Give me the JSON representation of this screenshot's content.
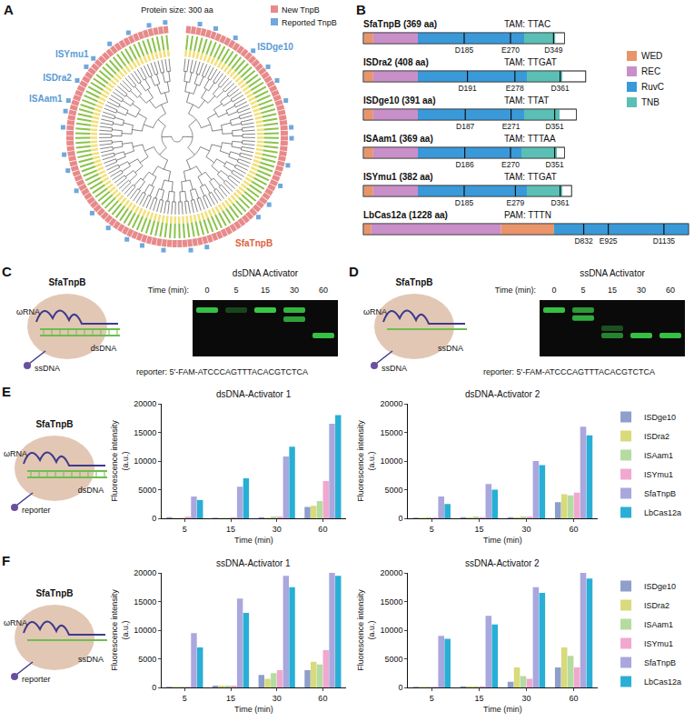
{
  "chart_data": [
    {
      "type": "bar",
      "title": "dsDNA-Activator 1",
      "xlabel": "Time (min)",
      "ylabel": "Fluorescence intensity (a.u.)",
      "categories": [
        "5",
        "15",
        "30",
        "60"
      ],
      "ylim": [
        0,
        20000
      ],
      "yticks": [
        0,
        5000,
        10000,
        15000,
        20000
      ],
      "grid": false,
      "legend": "right",
      "series": [
        {
          "name": "ISDge10",
          "color": "#8E9FCB",
          "values": [
            200,
            100,
            200,
            2000
          ]
        },
        {
          "name": "ISDra2",
          "color": "#D8DA7B",
          "values": [
            100,
            100,
            100,
            2200
          ]
        },
        {
          "name": "ISAam1",
          "color": "#B4DCA0",
          "values": [
            100,
            100,
            300,
            3000
          ]
        },
        {
          "name": "ISYmu1",
          "color": "#F0A8CF",
          "values": [
            300,
            200,
            300,
            6500
          ]
        },
        {
          "name": "SfaTnpB",
          "color": "#A9A7DD",
          "values": [
            3800,
            5500,
            10800,
            16500
          ]
        },
        {
          "name": "LbCas12a",
          "color": "#29AFD6",
          "values": [
            3200,
            7000,
            12500,
            18000
          ]
        }
      ]
    },
    {
      "type": "bar",
      "title": "dsDNA-Activator 2",
      "xlabel": "Time (min)",
      "ylabel": "Fluorescence intensity (a.u.)",
      "categories": [
        "5",
        "15",
        "30",
        "60"
      ],
      "ylim": [
        0,
        20000
      ],
      "yticks": [
        0,
        5000,
        10000,
        15000,
        20000
      ],
      "grid": false,
      "legend": "right",
      "series": [
        {
          "name": "ISDge10",
          "color": "#8E9FCB",
          "values": [
            100,
            200,
            200,
            2800
          ]
        },
        {
          "name": "ISDra2",
          "color": "#D8DA7B",
          "values": [
            100,
            200,
            200,
            4200
          ]
        },
        {
          "name": "ISAam1",
          "color": "#B4DCA0",
          "values": [
            200,
            300,
            300,
            4000
          ]
        },
        {
          "name": "ISYmu1",
          "color": "#F0A8CF",
          "values": [
            100,
            200,
            300,
            4500
          ]
        },
        {
          "name": "SfaTnpB",
          "color": "#A9A7DD",
          "values": [
            3800,
            6000,
            10000,
            16000
          ]
        },
        {
          "name": "LbCas12a",
          "color": "#29AFD6",
          "values": [
            2500,
            5000,
            9300,
            14500
          ]
        }
      ]
    },
    {
      "type": "bar",
      "title": "ssDNA-Activator 1",
      "xlabel": "Time (min)",
      "ylabel": "Fluorescence intensity (a.u.)",
      "categories": [
        "5",
        "15",
        "30",
        "60"
      ],
      "ylim": [
        0,
        20000
      ],
      "yticks": [
        0,
        5000,
        10000,
        15000,
        20000
      ],
      "grid": false,
      "legend": "right",
      "series": [
        {
          "name": "ISDge10",
          "color": "#8E9FCB",
          "values": [
            100,
            300,
            2200,
            3000
          ]
        },
        {
          "name": "ISDra2",
          "color": "#D8DA7B",
          "values": [
            100,
            300,
            1500,
            4500
          ]
        },
        {
          "name": "ISAam1",
          "color": "#B4DCA0",
          "values": [
            100,
            300,
            2500,
            4000
          ]
        },
        {
          "name": "ISYmu1",
          "color": "#F0A8CF",
          "values": [
            100,
            300,
            3000,
            6500
          ]
        },
        {
          "name": "SfaTnpB",
          "color": "#A9A7DD",
          "values": [
            9500,
            15500,
            19500,
            20000
          ]
        },
        {
          "name": "LbCas12a",
          "color": "#29AFD6",
          "values": [
            7000,
            13000,
            17500,
            19500
          ]
        }
      ]
    },
    {
      "type": "bar",
      "title": "ssDNA-Activator 2",
      "xlabel": "Time (min)",
      "ylabel": "Fluorescence intensity (a.u.)",
      "categories": [
        "5",
        "15",
        "30",
        "60"
      ],
      "ylim": [
        0,
        20000
      ],
      "yticks": [
        0,
        5000,
        10000,
        15000,
        20000
      ],
      "grid": false,
      "legend": "right",
      "series": [
        {
          "name": "ISDge10",
          "color": "#8E9FCB",
          "values": [
            100,
            200,
            1000,
            3500
          ]
        },
        {
          "name": "ISDra2",
          "color": "#D8DA7B",
          "values": [
            100,
            200,
            3500,
            7000
          ]
        },
        {
          "name": "ISAam1",
          "color": "#B4DCA0",
          "values": [
            100,
            200,
            2000,
            5500
          ]
        },
        {
          "name": "ISYmu1",
          "color": "#F0A8CF",
          "values": [
            100,
            200,
            1500,
            3500
          ]
        },
        {
          "name": "SfaTnpB",
          "color": "#A9A7DD",
          "values": [
            9000,
            12500,
            17500,
            20000
          ]
        },
        {
          "name": "LbCas12a",
          "color": "#29AFD6",
          "values": [
            8500,
            11000,
            16500,
            19000
          ]
        }
      ]
    }
  ],
  "panels": {
    "A": {
      "letter": "A",
      "top_label": "Protein size: 300 aa",
      "legend": [
        {
          "name": "New TnpB",
          "color": "#E88A8A"
        },
        {
          "name": "Reported TnpB",
          "color": "#6FA8DC"
        }
      ],
      "leaf_count": 128,
      "reported_leaves": [
        2,
        5,
        9,
        13,
        17,
        20,
        24,
        29,
        31,
        36,
        40,
        44,
        47,
        58,
        61,
        66,
        70,
        73,
        77,
        81,
        86,
        90,
        93,
        98,
        101,
        103,
        107,
        110,
        112,
        116,
        120,
        124,
        127
      ],
      "highlights": [
        {
          "name": "ISYmu1",
          "leaf": 112,
          "color": "#5B9BD5"
        },
        {
          "name": "ISDra2",
          "leaf": 107,
          "color": "#5B9BD5"
        },
        {
          "name": "ISAam1",
          "leaf": 103,
          "color": "#5B9BD5"
        },
        {
          "name": "ISDge10",
          "leaf": 13,
          "color": "#5B9BD5"
        },
        {
          "name": "SfaTnpB",
          "leaf": 53,
          "color": "#E0603E"
        }
      ]
    },
    "B": {
      "letter": "B",
      "legend": [
        {
          "name": "WED",
          "color": "#E8956B"
        },
        {
          "name": "REC",
          "color": "#C98FC9"
        },
        {
          "name": "RuvC",
          "color": "#3A9AD9"
        },
        {
          "name": "TNB",
          "color": "#5BBFB5"
        }
      ],
      "proteins": [
        {
          "label": "SfaTnpB (369 aa)",
          "length": 369,
          "motif": "TAM: TTAC",
          "domains": [
            {
              "name": "WED",
              "start": 1,
              "end": 18
            },
            {
              "name": "REC",
              "start": 18,
              "end": 100
            },
            {
              "name": "RuvC",
              "start": 100,
              "end": 295
            },
            {
              "name": "TNB",
              "start": 295,
              "end": 352
            }
          ],
          "sites": [
            {
              "label": "D185",
              "pos": 185
            },
            {
              "label": "E270",
              "pos": 270
            },
            {
              "label": "D349",
              "pos": 349
            }
          ]
        },
        {
          "label": "ISDra2 (408 aa)",
          "length": 408,
          "motif": "TAM: TTGAT",
          "domains": [
            {
              "name": "WED",
              "start": 1,
              "end": 18
            },
            {
              "name": "REC",
              "start": 18,
              "end": 100
            },
            {
              "name": "RuvC",
              "start": 100,
              "end": 300
            },
            {
              "name": "TNB",
              "start": 300,
              "end": 365
            }
          ],
          "sites": [
            {
              "label": "D191",
              "pos": 191
            },
            {
              "label": "E278",
              "pos": 278
            },
            {
              "label": "D361",
              "pos": 361
            }
          ]
        },
        {
          "label": "ISDge10 (391 aa)",
          "length": 391,
          "motif": "TAM: TTAT",
          "domains": [
            {
              "name": "WED",
              "start": 1,
              "end": 18
            },
            {
              "name": "REC",
              "start": 18,
              "end": 100
            },
            {
              "name": "RuvC",
              "start": 100,
              "end": 295
            },
            {
              "name": "TNB",
              "start": 295,
              "end": 360
            }
          ],
          "sites": [
            {
              "label": "D187",
              "pos": 187
            },
            {
              "label": "E271",
              "pos": 271
            },
            {
              "label": "D351",
              "pos": 351
            }
          ]
        },
        {
          "label": "ISAam1 (369 aa)",
          "length": 369,
          "motif": "TAM: TTTAA",
          "domains": [
            {
              "name": "WED",
              "start": 1,
              "end": 18
            },
            {
              "name": "REC",
              "start": 18,
              "end": 100
            },
            {
              "name": "RuvC",
              "start": 100,
              "end": 290
            },
            {
              "name": "TNB",
              "start": 290,
              "end": 355
            }
          ],
          "sites": [
            {
              "label": "D186",
              "pos": 186
            },
            {
              "label": "E270",
              "pos": 270
            },
            {
              "label": "D351",
              "pos": 351
            }
          ]
        },
        {
          "label": "ISYmu1 (382 aa)",
          "length": 382,
          "motif": "TAM: TTGAT",
          "domains": [
            {
              "name": "WED",
              "start": 1,
              "end": 18
            },
            {
              "name": "REC",
              "start": 18,
              "end": 100
            },
            {
              "name": "RuvC",
              "start": 100,
              "end": 300
            },
            {
              "name": "TNB",
              "start": 300,
              "end": 365
            }
          ],
          "sites": [
            {
              "label": "D185",
              "pos": 185
            },
            {
              "label": "E279",
              "pos": 279
            },
            {
              "label": "D361",
              "pos": 361
            }
          ]
        },
        {
          "label": "LbCas12a (1228 aa)",
          "length": 1228,
          "motif": "PAM: TTTN",
          "domains": [
            {
              "name": "WED",
              "start": 1,
              "end": 30
            },
            {
              "name": "REC",
              "start": 30,
              "end": 520
            },
            {
              "name": "WED",
              "start": 520,
              "end": 720
            },
            {
              "name": "RuvC",
              "start": 720,
              "end": 1228
            }
          ],
          "sites": [
            {
              "label": "D832",
              "pos": 832
            },
            {
              "label": "E925",
              "pos": 925
            },
            {
              "label": "D1135",
              "pos": 1135
            }
          ]
        }
      ]
    },
    "C": {
      "letter": "C",
      "protein": "SfaTnpB",
      "rna": "ωRNA",
      "target": "dsDNA",
      "reporter_label": "ssDNA",
      "activator": "dsDNA Activator",
      "time_label": "Time (min):",
      "times": [
        0,
        5,
        15,
        30,
        60
      ],
      "lanes": [
        [
          {
            "migration": 0,
            "intensity": 0.9
          }
        ],
        [
          {
            "migration": 0,
            "intensity": 0.3
          }
        ],
        [
          {
            "migration": 0,
            "intensity": 0.95
          }
        ],
        [
          {
            "migration": 0,
            "intensity": 0.85
          },
          {
            "migration": 0.25,
            "intensity": 0.75
          }
        ],
        [
          {
            "migration": 0.7,
            "intensity": 0.9
          }
        ]
      ],
      "reporter": "reporter: 5'-FAM-ATCCCAGTTTACACGTCTCA"
    },
    "D": {
      "letter": "D",
      "protein": "SfaTnpB",
      "rna": "ωRNA",
      "target": "ssDNA",
      "reporter_label": "ssDNA",
      "activator": "ssDNA Activator",
      "time_label": "Time (min):",
      "times": [
        0,
        5,
        15,
        30,
        60
      ],
      "lanes": [
        [
          {
            "migration": 0,
            "intensity": 0.9
          }
        ],
        [
          {
            "migration": 0,
            "intensity": 0.7
          },
          {
            "migration": 0.22,
            "intensity": 0.8
          }
        ],
        [
          {
            "migration": 0.5,
            "intensity": 0.35
          },
          {
            "migration": 0.7,
            "intensity": 0.6
          }
        ],
        [
          {
            "migration": 0.7,
            "intensity": 0.9
          }
        ],
        [
          {
            "migration": 0.7,
            "intensity": 0.9
          }
        ]
      ],
      "reporter": "reporter: 5'-FAM-ATCCCAGTTTACACGTCTCA"
    },
    "E": {
      "letter": "E",
      "protein": "SfaTnpB",
      "rna": "ωRNA",
      "target": "dsDNA",
      "reporter_label": "reporter"
    },
    "F": {
      "letter": "F",
      "protein": "SfaTnpB",
      "rna": "ωRNA",
      "target": "ssDNA",
      "reporter_label": "reporter"
    }
  }
}
